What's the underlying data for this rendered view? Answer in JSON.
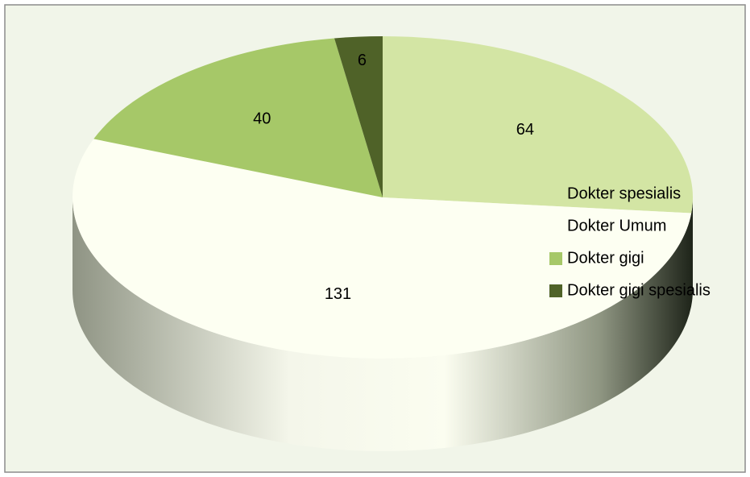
{
  "chart_data": {
    "type": "pie",
    "categories": [
      "Dokter spesialis",
      "Dokter Umum",
      "Dokter gigi",
      "Dokter gigi spesialis"
    ],
    "values": [
      64,
      131,
      40,
      6
    ],
    "colors": [
      "#d3e5a4",
      "#fdfff2",
      "#a6c868",
      "#4f6228"
    ],
    "legend": "right"
  }
}
